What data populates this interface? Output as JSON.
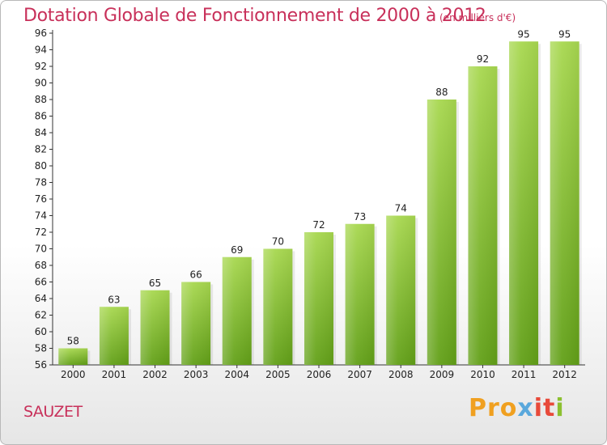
{
  "chart_data": {
    "type": "bar",
    "title": "Dotation Globale de Fonctionnement de 2000 à 2012",
    "subtitle": "(en milliers d'€)",
    "categories": [
      "2000",
      "2001",
      "2002",
      "2003",
      "2004",
      "2005",
      "2006",
      "2007",
      "2008",
      "2009",
      "2010",
      "2011",
      "2012"
    ],
    "values": [
      58,
      63,
      65,
      66,
      69,
      70,
      72,
      73,
      74,
      88,
      92,
      95,
      95
    ],
    "ylim": [
      56,
      96
    ],
    "ytick_step": 2,
    "grid": false,
    "bar_color": "#7dbb2a",
    "bar_color_light": "#a6d852"
  },
  "labels": {
    "commune": "SAUZET"
  },
  "logo": {
    "text": "Proxiti",
    "parts": [
      "Pro",
      "x",
      "it",
      "i"
    ]
  }
}
